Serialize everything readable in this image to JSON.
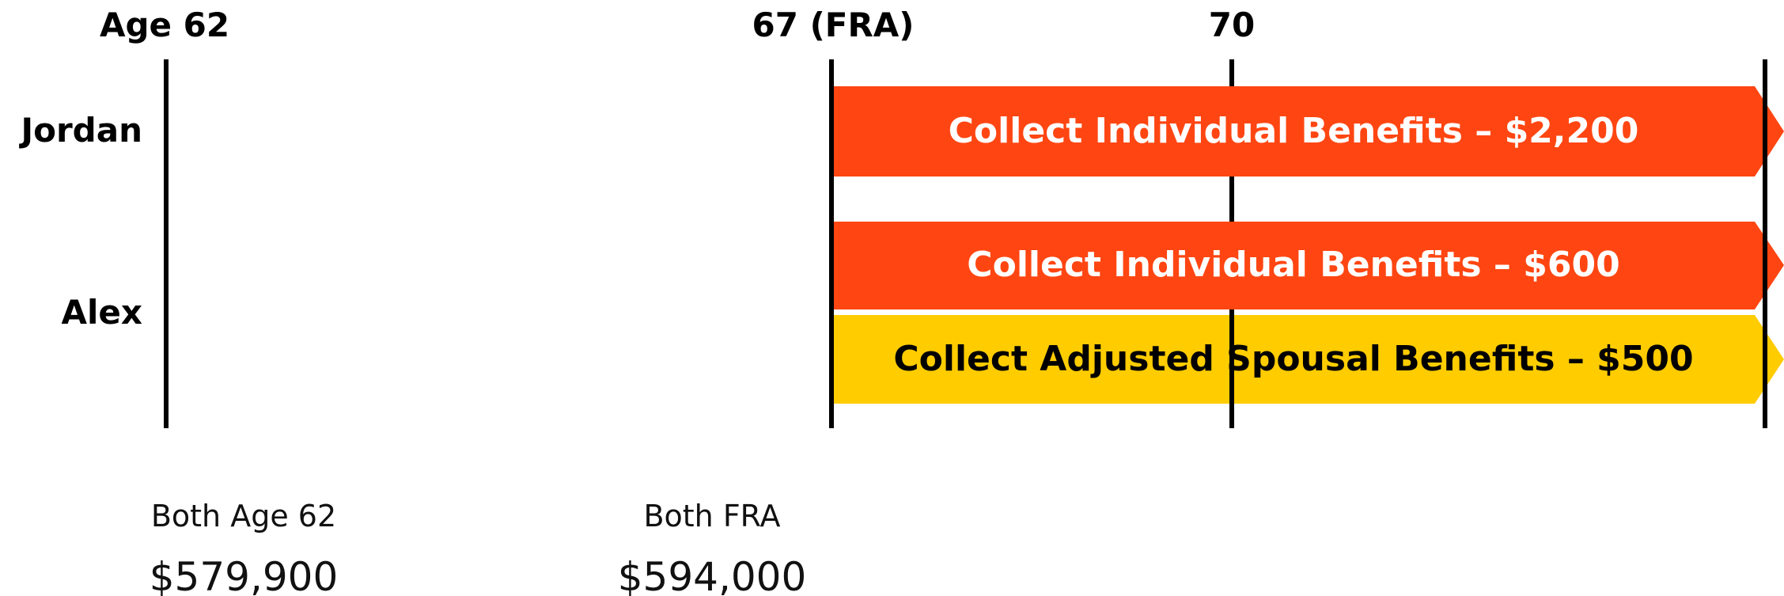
{
  "timeline": {
    "markers": [
      "Age 62",
      "67 (FRA)",
      "70"
    ],
    "people": [
      {
        "name": "Jordan",
        "bars": [
          "Collect Individual Benefits – $2,200"
        ]
      },
      {
        "name": "Alex",
        "bars": [
          "Collect Individual Benefits – $600",
          "Collect Adjusted Spousal Benefits – $500"
        ]
      }
    ]
  },
  "summary": [
    {
      "label": "Both Age 62",
      "value": "$579,900"
    },
    {
      "label": "Both FRA",
      "value": "$594,000"
    }
  ]
}
